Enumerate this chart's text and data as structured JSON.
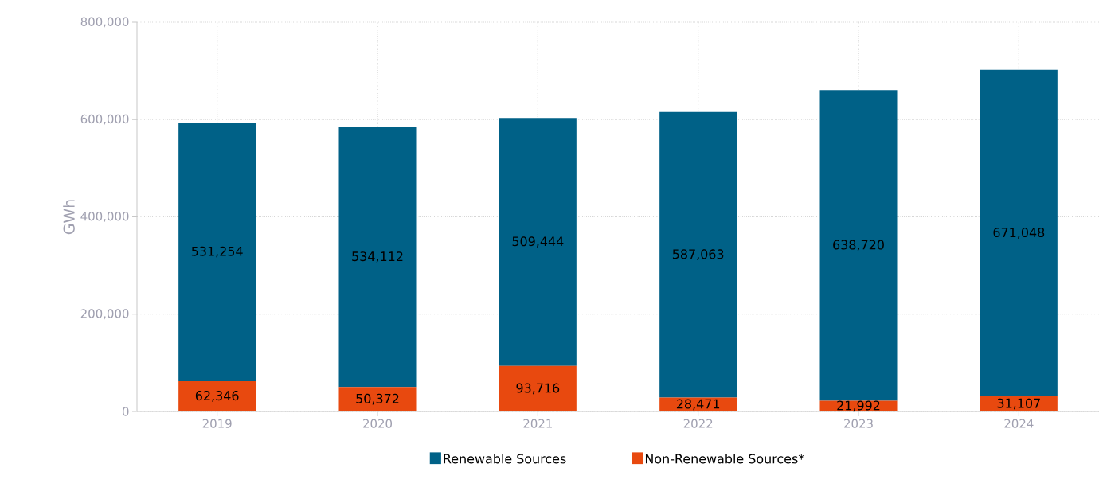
{
  "chart_data": {
    "type": "bar",
    "stacked": true,
    "ylabel": "GWh",
    "categories": [
      "2019",
      "2020",
      "2021",
      "2022",
      "2023",
      "2024"
    ],
    "series": [
      {
        "name": "Non-Renewable Sources*",
        "color": "#e8490f",
        "values": [
          62346,
          50372,
          93716,
          28471,
          21992,
          31107
        ],
        "value_labels": [
          "62,346",
          "50,372",
          "93,716",
          "28,471",
          "21,992",
          "31,107"
        ]
      },
      {
        "name": "Renewable Sources",
        "color": "#006187",
        "values": [
          531254,
          534112,
          509444,
          587063,
          638720,
          671048
        ],
        "value_labels": [
          "531,254",
          "534,112",
          "509,444",
          "587,063",
          "638,720",
          "671,048"
        ]
      }
    ],
    "ylim": [
      0,
      800000
    ],
    "yticks": [
      0,
      {
        "value": 200000,
        "label": "200,000"
      },
      {
        "value": 400000,
        "label": "400,000"
      },
      {
        "value": 600000,
        "label": "600,000"
      },
      {
        "value": 800000,
        "label": "800,000"
      }
    ],
    "grid": true,
    "legend": "bottom"
  }
}
